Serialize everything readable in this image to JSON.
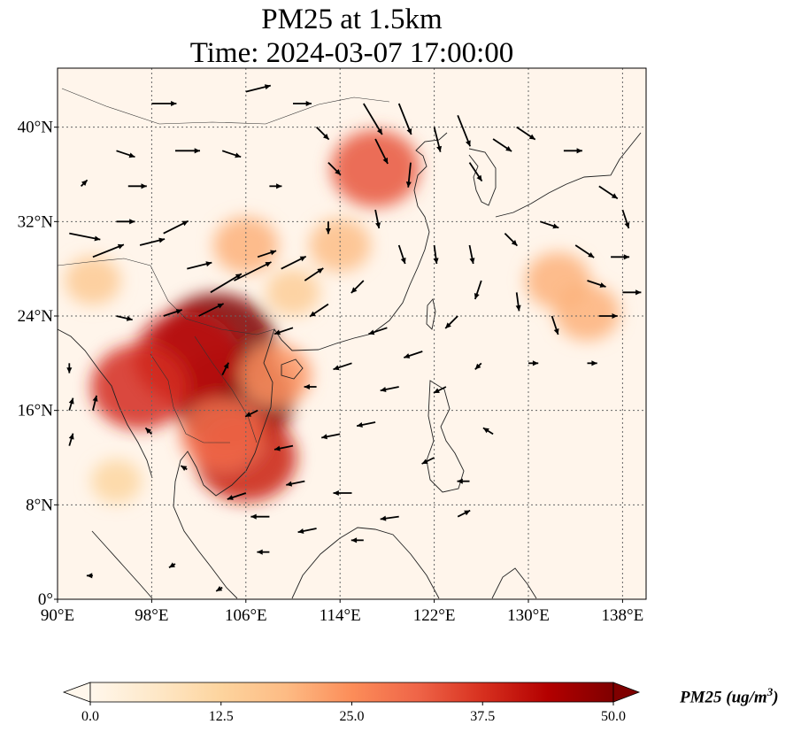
{
  "title": {
    "line1": "PM25 at 1.5km",
    "line2": "Time: 2024-03-07 17:00:00"
  },
  "map": {
    "lon_range": [
      90,
      140
    ],
    "lat_range": [
      0,
      45
    ],
    "lon_ticks": [
      {
        "value": 90,
        "label": "90°E"
      },
      {
        "value": 98,
        "label": "98°E"
      },
      {
        "value": 106,
        "label": "106°E"
      },
      {
        "value": 114,
        "label": "114°E"
      },
      {
        "value": 122,
        "label": "122°E"
      },
      {
        "value": 130,
        "label": "130°E"
      },
      {
        "value": 138,
        "label": "138°E"
      }
    ],
    "lat_ticks": [
      {
        "value": 0,
        "label": "0°"
      },
      {
        "value": 8,
        "label": "8°N"
      },
      {
        "value": 16,
        "label": "16°N"
      },
      {
        "value": 24,
        "label": "24°N"
      },
      {
        "value": 32,
        "label": "32°N"
      },
      {
        "value": 40,
        "label": "40°N"
      }
    ],
    "gridlines": true,
    "background_color": "#fff5eb",
    "pm25_hotspots": [
      {
        "lon": 103.5,
        "lat": 21.5,
        "value": 50
      },
      {
        "lon": 105.0,
        "lat": 17.0,
        "value": 50
      },
      {
        "lon": 101.0,
        "lat": 20.5,
        "value": 42
      },
      {
        "lon": 97.0,
        "lat": 18.0,
        "value": 38
      },
      {
        "lon": 106.0,
        "lat": 12.0,
        "value": 40
      },
      {
        "lon": 104.0,
        "lat": 14.0,
        "value": 30
      },
      {
        "lon": 108.5,
        "lat": 19.0,
        "value": 24
      },
      {
        "lon": 117.0,
        "lat": 36.5,
        "value": 33
      },
      {
        "lon": 114.0,
        "lat": 30.0,
        "value": 18
      },
      {
        "lon": 106.0,
        "lat": 30.0,
        "value": 20
      },
      {
        "lon": 132.5,
        "lat": 27.0,
        "value": 20
      },
      {
        "lon": 135.0,
        "lat": 24.3,
        "value": 20
      },
      {
        "lon": 93.0,
        "lat": 27.0,
        "value": 15
      },
      {
        "lon": 110.0,
        "lat": 26.0,
        "value": 14
      },
      {
        "lon": 95.0,
        "lat": 10.0,
        "value": 12
      }
    ],
    "wind_vectors": [
      {
        "lon": 91,
        "lat": 31,
        "u": 2.5,
        "v": -0.5
      },
      {
        "lon": 93,
        "lat": 29,
        "u": 2.5,
        "v": 1
      },
      {
        "lon": 95,
        "lat": 32,
        "u": 1.5,
        "v": 0
      },
      {
        "lon": 97,
        "lat": 30,
        "u": 2,
        "v": 0.5
      },
      {
        "lon": 99,
        "lat": 31,
        "u": 2,
        "v": 1
      },
      {
        "lon": 101,
        "lat": 28,
        "u": 2,
        "v": 0.5
      },
      {
        "lon": 103,
        "lat": 26,
        "u": 2.5,
        "v": 1.5
      },
      {
        "lon": 105,
        "lat": 27,
        "u": 3,
        "v": 1.5
      },
      {
        "lon": 107,
        "lat": 29,
        "u": 1.5,
        "v": 0.5
      },
      {
        "lon": 109,
        "lat": 28,
        "u": 2,
        "v": 1
      },
      {
        "lon": 111,
        "lat": 27,
        "u": 1.5,
        "v": 1
      },
      {
        "lon": 102,
        "lat": 24,
        "u": 2,
        "v": 1
      },
      {
        "lon": 96,
        "lat": 35,
        "u": 1.5,
        "v": 0
      },
      {
        "lon": 100,
        "lat": 38,
        "u": 2,
        "v": 0
      },
      {
        "lon": 104,
        "lat": 38,
        "u": 1.5,
        "v": -0.5
      },
      {
        "lon": 98,
        "lat": 42,
        "u": 2,
        "v": 0
      },
      {
        "lon": 106,
        "lat": 43,
        "u": 2,
        "v": 0.5
      },
      {
        "lon": 110,
        "lat": 42,
        "u": 1.5,
        "v": 0
      },
      {
        "lon": 112,
        "lat": 40,
        "u": 1,
        "v": -1
      },
      {
        "lon": 113,
        "lat": 37,
        "u": 1,
        "v": -1
      },
      {
        "lon": 116,
        "lat": 42,
        "u": 1.5,
        "v": -2.5
      },
      {
        "lon": 117,
        "lat": 39,
        "u": 1,
        "v": -2
      },
      {
        "lon": 119,
        "lat": 42,
        "u": 1,
        "v": -2.5
      },
      {
        "lon": 120,
        "lat": 37,
        "u": -0.2,
        "v": -2
      },
      {
        "lon": 122,
        "lat": 40,
        "u": 0.5,
        "v": -2
      },
      {
        "lon": 124,
        "lat": 41,
        "u": 1,
        "v": -2.5
      },
      {
        "lon": 125,
        "lat": 37,
        "u": 1,
        "v": -1.5
      },
      {
        "lon": 127,
        "lat": 39,
        "u": 1.5,
        "v": -1
      },
      {
        "lon": 129,
        "lat": 40,
        "u": 1.5,
        "v": -1
      },
      {
        "lon": 133,
        "lat": 38,
        "u": 1.5,
        "v": 0
      },
      {
        "lon": 136,
        "lat": 35,
        "u": 1.5,
        "v": -1
      },
      {
        "lon": 138,
        "lat": 33,
        "u": 0.5,
        "v": -1.5
      },
      {
        "lon": 137,
        "lat": 29,
        "u": 1.5,
        "v": 0
      },
      {
        "lon": 134,
        "lat": 30,
        "u": 1.5,
        "v": -1
      },
      {
        "lon": 131,
        "lat": 32,
        "u": 1.5,
        "v": -0.5
      },
      {
        "lon": 128,
        "lat": 31,
        "u": 1,
        "v": -1
      },
      {
        "lon": 125,
        "lat": 30,
        "u": 0.3,
        "v": -1.5
      },
      {
        "lon": 122,
        "lat": 30,
        "u": 0.2,
        "v": -1.5
      },
      {
        "lon": 119,
        "lat": 30,
        "u": 0.5,
        "v": -1.5
      },
      {
        "lon": 117,
        "lat": 33,
        "u": 0.3,
        "v": -1.5
      },
      {
        "lon": 113,
        "lat": 32,
        "u": 0,
        "v": -1
      },
      {
        "lon": 116,
        "lat": 27,
        "u": -1,
        "v": -1
      },
      {
        "lon": 113,
        "lat": 25,
        "u": -1.5,
        "v": -1
      },
      {
        "lon": 110,
        "lat": 23,
        "u": -1.5,
        "v": -0.5
      },
      {
        "lon": 118,
        "lat": 23,
        "u": -1.5,
        "v": -0.5
      },
      {
        "lon": 121,
        "lat": 21,
        "u": -1.5,
        "v": -0.5
      },
      {
        "lon": 124,
        "lat": 24,
        "u": -1,
        "v": -1
      },
      {
        "lon": 126,
        "lat": 27,
        "u": -0.5,
        "v": -1.5
      },
      {
        "lon": 129,
        "lat": 26,
        "u": 0.2,
        "v": -1.5
      },
      {
        "lon": 132,
        "lat": 24,
        "u": 0.5,
        "v": -1.5
      },
      {
        "lon": 136,
        "lat": 24,
        "u": 1.5,
        "v": 0
      },
      {
        "lon": 135,
        "lat": 20,
        "u": 0.8,
        "v": 0
      },
      {
        "lon": 130,
        "lat": 20,
        "u": 0.8,
        "v": 0
      },
      {
        "lon": 126,
        "lat": 20,
        "u": -0.5,
        "v": -0.5
      },
      {
        "lon": 123,
        "lat": 18,
        "u": -1,
        "v": -0.5
      },
      {
        "lon": 119,
        "lat": 18,
        "u": -1.5,
        "v": -0.3
      },
      {
        "lon": 115,
        "lat": 20,
        "u": -1.5,
        "v": -0.5
      },
      {
        "lon": 112,
        "lat": 18,
        "u": -1,
        "v": 0
      },
      {
        "lon": 117,
        "lat": 15,
        "u": -1.5,
        "v": -0.3
      },
      {
        "lon": 114,
        "lat": 14,
        "u": -1.5,
        "v": -0.3
      },
      {
        "lon": 110,
        "lat": 13,
        "u": -1.5,
        "v": -0.3
      },
      {
        "lon": 111,
        "lat": 10,
        "u": -1.5,
        "v": -0.3
      },
      {
        "lon": 115,
        "lat": 9,
        "u": -1.5,
        "v": 0
      },
      {
        "lon": 119,
        "lat": 7,
        "u": -1.5,
        "v": -0.2
      },
      {
        "lon": 116,
        "lat": 5,
        "u": -1,
        "v": 0
      },
      {
        "lon": 112,
        "lat": 6,
        "u": -1.5,
        "v": -0.3
      },
      {
        "lon": 108,
        "lat": 7,
        "u": -1.5,
        "v": 0
      },
      {
        "lon": 106,
        "lat": 9,
        "u": -1.5,
        "v": -0.5
      },
      {
        "lon": 122,
        "lat": 12,
        "u": -1,
        "v": -0.5
      },
      {
        "lon": 125,
        "lat": 10,
        "u": -1,
        "v": 0
      },
      {
        "lon": 124,
        "lat": 7,
        "u": 1,
        "v": 0.5
      },
      {
        "lon": 127,
        "lat": 14,
        "u": -0.8,
        "v": 0.5
      },
      {
        "lon": 108,
        "lat": 4,
        "u": -1,
        "v": 0
      },
      {
        "lon": 100,
        "lat": 3,
        "u": -0.5,
        "v": -0.3
      },
      {
        "lon": 93,
        "lat": 2,
        "u": -0.5,
        "v": 0
      },
      {
        "lon": 104,
        "lat": 1,
        "u": -0.5,
        "v": -0.3
      },
      {
        "lon": 91,
        "lat": 13,
        "u": 0.3,
        "v": 1
      },
      {
        "lon": 91,
        "lat": 16,
        "u": 0.3,
        "v": 1
      },
      {
        "lon": 91,
        "lat": 20,
        "u": 0,
        "v": -0.8
      },
      {
        "lon": 93,
        "lat": 16,
        "u": 0.3,
        "v": 1.2
      },
      {
        "lon": 95,
        "lat": 24,
        "u": 1.3,
        "v": -0.3
      },
      {
        "lon": 99,
        "lat": 24,
        "u": 1.5,
        "v": 0.5
      },
      {
        "lon": 104,
        "lat": 19,
        "u": 0.5,
        "v": 1
      },
      {
        "lon": 107,
        "lat": 16,
        "u": -1,
        "v": -0.5
      },
      {
        "lon": 98,
        "lat": 14,
        "u": -0.5,
        "v": 0.5
      },
      {
        "lon": 101,
        "lat": 11,
        "u": -0.5,
        "v": 0.3
      },
      {
        "lon": 95,
        "lat": 38,
        "u": 1.5,
        "v": -0.5
      },
      {
        "lon": 92,
        "lat": 35,
        "u": 0.5,
        "v": 0.5
      },
      {
        "lon": 108,
        "lat": 35,
        "u": 1,
        "v": 0
      },
      {
        "lon": 135,
        "lat": 27,
        "u": 1.5,
        "v": -0.5
      },
      {
        "lon": 138,
        "lat": 26,
        "u": 1.5,
        "v": 0
      }
    ]
  },
  "colorbar": {
    "min": 0,
    "max": 50,
    "extend": "both",
    "colormap": "OrRd",
    "colors": [
      "#fff7ec",
      "#fee8c8",
      "#fdd49e",
      "#fdbb84",
      "#fc8d59",
      "#ef6548",
      "#d7301f",
      "#b30000",
      "#7f0000"
    ],
    "ticks": [
      "0.0",
      "12.5",
      "25.0",
      "37.5",
      "50.0"
    ],
    "label_text": "PM25 (ug/m",
    "label_sup": "3",
    "label_close": ")"
  }
}
